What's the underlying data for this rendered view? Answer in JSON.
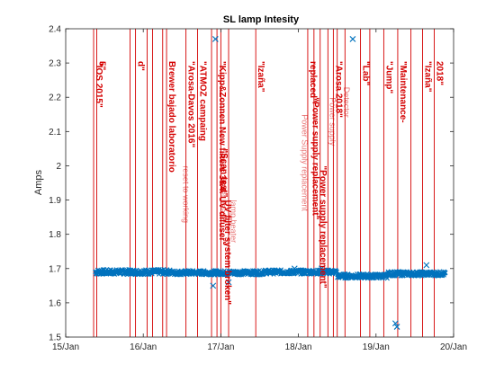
{
  "chart_data": {
    "type": "scatter",
    "title": "SL lamp Intesity",
    "xlabel": "",
    "ylabel": "Amps",
    "xlim": [
      0,
      5
    ],
    "ylim": [
      1.5,
      2.4
    ],
    "x_ticks": [
      0,
      1,
      2,
      3,
      4,
      5
    ],
    "x_tick_labels": [
      "15/Jan",
      "16/Jan",
      "17/Jan",
      "18/Jan",
      "19/Jan",
      "20/Jan"
    ],
    "y_ticks": [
      1.5,
      1.6,
      1.7,
      1.8,
      1.9,
      2.0,
      2.1,
      2.2,
      2.3,
      2.4
    ],
    "y_tick_labels": [
      "1.5",
      "1.6",
      "1.7",
      "1.8",
      "1.9",
      "2",
      "2.1",
      "2.2",
      "2.3",
      "2.4"
    ],
    "grid": false,
    "colors": {
      "data": "#0072bd",
      "events": "#d40000",
      "axes": "#262626"
    },
    "series": [
      {
        "marker": "x",
        "segments": [
          {
            "x_start": 0.38,
            "x_end": 1.36,
            "y_mean": 1.69,
            "spread": 0.008
          },
          {
            "x_start": 1.37,
            "x_end": 2.55,
            "y_mean": 1.688,
            "spread": 0.007
          },
          {
            "x_start": 2.55,
            "x_end": 3.5,
            "y_mean": 1.69,
            "spread": 0.007
          },
          {
            "x_start": 3.5,
            "x_end": 4.15,
            "y_mean": 1.678,
            "spread": 0.007
          },
          {
            "x_start": 4.15,
            "x_end": 4.9,
            "y_mean": 1.685,
            "spread": 0.007
          }
        ],
        "outliers": [
          {
            "x": 1.9,
            "y": 1.65
          },
          {
            "x": 1.93,
            "y": 2.37
          },
          {
            "x": 2.1,
            "y": 1.66
          },
          {
            "x": 3.7,
            "y": 2.37
          },
          {
            "x": 4.25,
            "y": 1.54
          },
          {
            "x": 4.27,
            "y": 1.53
          },
          {
            "x": 4.65,
            "y": 1.71
          },
          {
            "x": 2.95,
            "y": 1.7
          },
          {
            "x": 3.3,
            "y": 1.7
          }
        ]
      }
    ],
    "events": [
      {
        "x": 0.36,
        "label": "\"IOS 2015\""
      },
      {
        "x": 0.4,
        "label": "5\""
      },
      {
        "x": 0.83,
        "label": ""
      },
      {
        "x": 0.9,
        "label": "d\""
      },
      {
        "x": 1.05,
        "label": ""
      },
      {
        "x": 1.12,
        "label": ""
      },
      {
        "x": 1.25,
        "label": ""
      },
      {
        "x": 1.3,
        "label": "Brewer bajado laboratorio"
      },
      {
        "x": 1.55,
        "label": "\"Arosa-Davos 2016\""
      },
      {
        "x": 1.7,
        "label": "\"ATMOZ campaing"
      },
      {
        "x": 1.88,
        "label": ""
      },
      {
        "x": 1.95,
        "label": "\"Kipp&Zonnen New filters 3&4. UV difuser\""
      },
      {
        "x": 2.0,
        "label": ""
      },
      {
        "x": 2.1,
        "label": ""
      },
      {
        "x": 2.45,
        "label": "\"Izaña\""
      },
      {
        "x": 3.12,
        "label": "replaced\""
      },
      {
        "x": 3.2,
        "label": ""
      },
      {
        "x": 3.28,
        "label": ""
      },
      {
        "x": 3.38,
        "label": ""
      },
      {
        "x": 3.45,
        "label": "\"Arosa 2018\""
      },
      {
        "x": 3.5,
        "label": ""
      },
      {
        "x": 3.6,
        "label": ""
      },
      {
        "x": 3.8,
        "label": "\"Lab\""
      },
      {
        "x": 3.92,
        "label": ""
      },
      {
        "x": 4.1,
        "label": "\"Jump\""
      },
      {
        "x": 4.28,
        "label": "\"Maintenance-"
      },
      {
        "x": 4.45,
        "label": ""
      },
      {
        "x": 4.6,
        "label": "\"Izaña\""
      },
      {
        "x": 4.75,
        "label": "2018\""
      }
    ],
    "faint_labels": [
      {
        "x": 1.47,
        "y": 2.0,
        "text": "reset to working"
      },
      {
        "x": 1.95,
        "y": 1.97,
        "text": "Reset heater"
      },
      {
        "x": 2.08,
        "y": 1.9,
        "text": "lamp heater"
      },
      {
        "x": 3.0,
        "y": 2.15,
        "text": "Power Supply replacement"
      },
      {
        "x": 3.36,
        "y": 2.2,
        "text": "Power supply"
      },
      {
        "x": 3.54,
        "y": 2.23,
        "text": "Detector"
      }
    ],
    "extra_labels": [
      {
        "x": 1.97,
        "y": 2.05,
        "text": "\"Scan test\""
      },
      {
        "x": 2.02,
        "y": 1.9,
        "text": "UV filter system broken\""
      },
      {
        "x": 3.25,
        "y": 2.0,
        "text": "\"Power supply replacement\""
      },
      {
        "x": 3.15,
        "y": 2.2,
        "text": "\"Power supply replacement\""
      }
    ]
  }
}
